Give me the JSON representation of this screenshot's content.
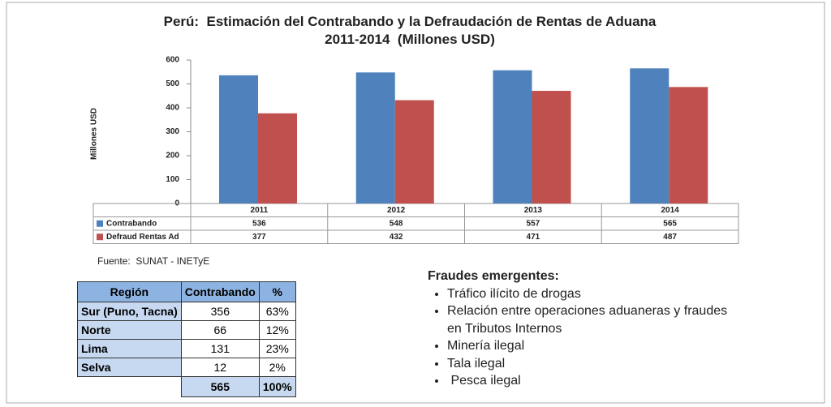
{
  "chart_data": {
    "type": "bar",
    "title": "Perú:  Estimación del Contrabando y la Defraudación de Rentas de Aduana 2011-2014  (Millones USD)",
    "y_label": "Millones USD",
    "categories": [
      "2011",
      "2012",
      "2013",
      "2014"
    ],
    "series": [
      {
        "name": "Contrabando",
        "color": "#4f81bd",
        "values": [
          536,
          548,
          557,
          565
        ]
      },
      {
        "name": "Defraud Rentas Ad",
        "color": "#c0504d",
        "values": [
          377,
          432,
          471,
          487
        ]
      }
    ],
    "ylim": [
      0,
      600
    ],
    "yticks": [
      0,
      100,
      200,
      300,
      400,
      500,
      600
    ],
    "grid": false
  },
  "source": "Fuente:  SUNAT - INETyE",
  "region_table": {
    "header": [
      "Región",
      "Contrabando",
      "%"
    ],
    "rows": [
      [
        "Sur (Puno, Tacna)",
        "356",
        "63%"
      ],
      [
        "Norte",
        "66",
        "12%"
      ],
      [
        "Lima",
        "131",
        "23%"
      ],
      [
        "Selva",
        "12",
        "2%"
      ]
    ],
    "total": [
      "565",
      "100%"
    ]
  },
  "frauds": {
    "title": "Fraudes emergentes:",
    "items": [
      "Tráfico ilícito de drogas",
      "Relación entre operaciones aduaneras y fraudes en Tributos Internos",
      "Minería ilegal",
      "Tala ilegal",
      " Pesca ilegal"
    ]
  }
}
